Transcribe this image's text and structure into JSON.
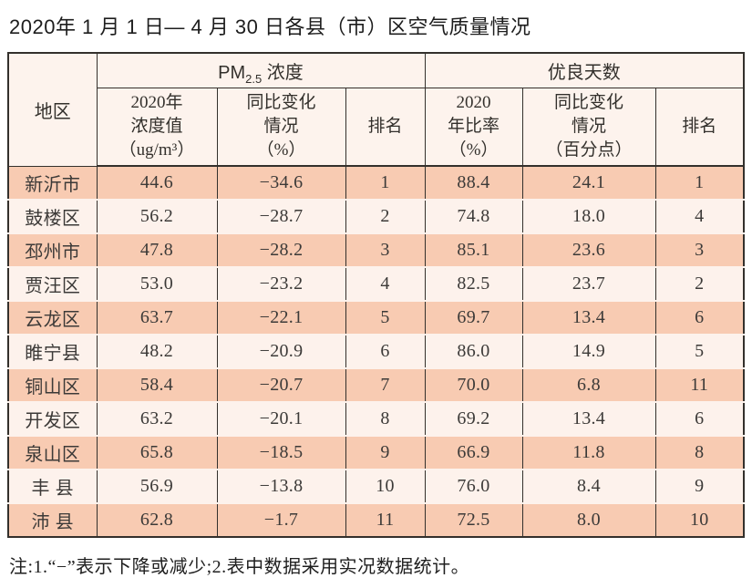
{
  "title": "2020年 1 月 1 日— 4 月 30 日各县（市）区空气质量情况",
  "footnote": "注:1.“−”表示下降或减少;2.表中数据采用实况数据统计。",
  "colors": {
    "row_odd_bg": "#f8cbb2",
    "row_even_bg": "#fdf2ec",
    "header_bg": "#fdf3ed",
    "border": "#33302c"
  },
  "chart_data": {
    "type": "table",
    "title": "2020年1月1日—4月30日各县（市）区空气质量情况",
    "region_header": "地区",
    "pm_group_header": {
      "prefix": "PM",
      "sub": "2.5",
      "rest": " 浓度"
    },
    "good_days_group_header": "优良天数",
    "columns": [
      "2020年\n浓度值\n（ug/m³）",
      "同比变化\n情况\n（%）",
      "排名",
      "2020\n年比率\n（%）",
      "同比变化\n情况\n（百分点）",
      "排名"
    ],
    "rows": [
      {
        "region": "新沂市",
        "pm_value": "44.6",
        "pm_change": "−34.6",
        "pm_rank": "1",
        "ratio": "88.4",
        "ratio_change": "24.1",
        "ratio_rank": "1"
      },
      {
        "region": "鼓楼区",
        "pm_value": "56.2",
        "pm_change": "−28.7",
        "pm_rank": "2",
        "ratio": "74.8",
        "ratio_change": "18.0",
        "ratio_rank": "4"
      },
      {
        "region": "邳州市",
        "pm_value": "47.8",
        "pm_change": "−28.2",
        "pm_rank": "3",
        "ratio": "85.1",
        "ratio_change": "23.6",
        "ratio_rank": "3"
      },
      {
        "region": "贾汪区",
        "pm_value": "53.0",
        "pm_change": "−23.2",
        "pm_rank": "4",
        "ratio": "82.5",
        "ratio_change": "23.7",
        "ratio_rank": "2"
      },
      {
        "region": "云龙区",
        "pm_value": "63.7",
        "pm_change": "−22.1",
        "pm_rank": "5",
        "ratio": "69.7",
        "ratio_change": "13.4",
        "ratio_rank": "6"
      },
      {
        "region": "睢宁县",
        "pm_value": "48.2",
        "pm_change": "−20.9",
        "pm_rank": "6",
        "ratio": "86.0",
        "ratio_change": "14.9",
        "ratio_rank": "5"
      },
      {
        "region": "铜山区",
        "pm_value": "58.4",
        "pm_change": "−20.7",
        "pm_rank": "7",
        "ratio": "70.0",
        "ratio_change": "6.8",
        "ratio_rank": "11"
      },
      {
        "region": "开发区",
        "pm_value": "63.2",
        "pm_change": "−20.1",
        "pm_rank": "8",
        "ratio": "69.2",
        "ratio_change": "13.4",
        "ratio_rank": "6"
      },
      {
        "region": "泉山区",
        "pm_value": "65.8",
        "pm_change": "−18.5",
        "pm_rank": "9",
        "ratio": "66.9",
        "ratio_change": "11.8",
        "ratio_rank": "8"
      },
      {
        "region": "丰 县",
        "pm_value": "56.9",
        "pm_change": "−13.8",
        "pm_rank": "10",
        "ratio": "76.0",
        "ratio_change": "8.4",
        "ratio_rank": "9"
      },
      {
        "region": "沛 县",
        "pm_value": "62.8",
        "pm_change": "−1.7",
        "pm_rank": "11",
        "ratio": "72.5",
        "ratio_change": "8.0",
        "ratio_rank": "10"
      }
    ],
    "footnote": "注:1.“−”表示下降或减少;2.表中数据采用实况数据统计。"
  }
}
